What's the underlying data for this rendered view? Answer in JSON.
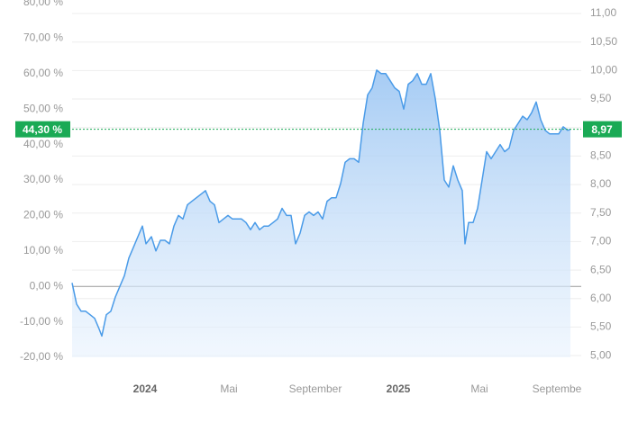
{
  "chart_data": {
    "type": "line",
    "x": [
      0,
      5,
      10,
      15,
      20,
      25,
      30,
      33,
      38,
      43,
      48,
      53,
      58,
      63,
      68,
      73,
      78,
      82,
      88,
      93,
      98,
      103,
      108,
      113,
      118,
      123,
      128,
      133,
      138,
      143,
      148,
      153,
      158,
      163,
      168,
      173,
      178,
      183,
      188,
      193,
      198,
      203,
      208,
      213,
      218,
      223,
      228,
      233,
      238,
      243,
      248,
      253,
      258,
      263,
      268,
      273,
      278,
      283,
      288,
      293,
      298,
      303,
      308,
      313,
      318,
      323,
      328,
      333,
      338,
      343,
      348,
      353,
      358,
      363,
      368,
      373,
      378,
      383,
      388,
      393,
      398,
      403,
      408,
      413,
      418,
      423,
      428,
      433,
      436,
      440,
      445,
      450,
      455,
      460,
      465,
      470,
      475,
      480,
      485,
      490,
      495,
      500,
      505,
      510,
      515,
      520,
      525,
      530,
      535,
      540,
      545,
      550,
      553
    ],
    "values": [
      1,
      -5,
      -7,
      -7,
      -8,
      -9,
      -12,
      -14,
      -8,
      -7,
      -3,
      0,
      3,
      8,
      11,
      14,
      17,
      12,
      14,
      10,
      13,
      13,
      12,
      17,
      20,
      19,
      23,
      24,
      25,
      26,
      27,
      24,
      23,
      18,
      19,
      20,
      19,
      19,
      19,
      18,
      16,
      18,
      16,
      17,
      17,
      18,
      19,
      22,
      20,
      20,
      12,
      15,
      20,
      21,
      20,
      21,
      19,
      24,
      25,
      25,
      29,
      35,
      36,
      36,
      35,
      46,
      54,
      56,
      61,
      60,
      60,
      58,
      56,
      55,
      50,
      57,
      58,
      60,
      57,
      57,
      60,
      53,
      44,
      30,
      28,
      34,
      30,
      27,
      12,
      18,
      18,
      22,
      30,
      38,
      36,
      38,
      40,
      38,
      39,
      44,
      46,
      48,
      47,
      49,
      52,
      47,
      44,
      43,
      43,
      43,
      45,
      44,
      44.3
    ],
    "color": "#4a9be8",
    "xlim": [
      0,
      565
    ],
    "xticks": [
      {
        "value": 81,
        "label": "2024"
      },
      {
        "value": 174,
        "label": "Mai"
      },
      {
        "value": 270,
        "label": "September"
      },
      {
        "value": 362,
        "label": "2025"
      },
      {
        "value": 452,
        "label": "Mai"
      },
      {
        "value": 540,
        "label": "September"
      }
    ],
    "ylim": [
      -20,
      80
    ],
    "yticks": [
      {
        "value": -20,
        "label": "-20,00 %"
      },
      {
        "value": -10,
        "label": "-10,00 %"
      },
      {
        "value": 0,
        "label": "0,00 %"
      },
      {
        "value": 10,
        "label": "10,00 %"
      },
      {
        "value": 20,
        "label": "20,00 %"
      },
      {
        "value": 30,
        "label": "30,00 %"
      },
      {
        "value": 40,
        "label": "40,00 %"
      },
      {
        "value": 50,
        "label": "50,00 %"
      },
      {
        "value": 60,
        "label": "60,00 %"
      },
      {
        "value": 70,
        "label": "70,00 %"
      },
      {
        "value": 80,
        "label": "80,00 %"
      }
    ],
    "y2lim": [
      4.97,
      11.19
    ],
    "y2ticks": [
      {
        "value": 5,
        "label": "5,00"
      },
      {
        "value": 5.5,
        "label": "5,50"
      },
      {
        "value": 6,
        "label": "6,00"
      },
      {
        "value": 6.5,
        "label": "6,50"
      },
      {
        "value": 7,
        "label": "7,00"
      },
      {
        "value": 7.5,
        "label": "7,50"
      },
      {
        "value": 8,
        "label": "8,00"
      },
      {
        "value": 8.5,
        "label": "8,50"
      },
      {
        "value": 9,
        "label": "9,00"
      },
      {
        "value": 9.5,
        "label": "9,50"
      },
      {
        "value": 10,
        "label": "10,00"
      },
      {
        "value": 10.5,
        "label": "10,50"
      },
      {
        "value": 11,
        "label": "11,00"
      }
    ],
    "grid": true,
    "markers": [
      {
        "value": 44.3,
        "label": "44,30 %",
        "axis": "y",
        "color": "#1aaa55"
      },
      {
        "value": 8.97,
        "label": "8,97",
        "axis": "y2",
        "color": "#1aaa55"
      }
    ]
  }
}
